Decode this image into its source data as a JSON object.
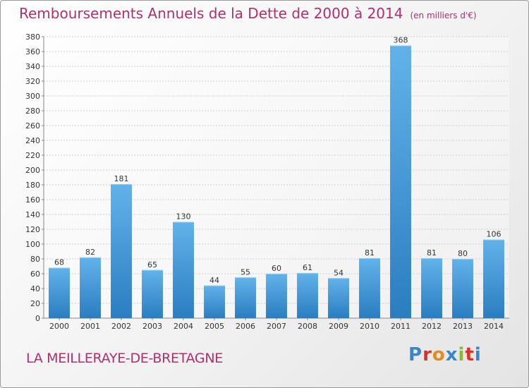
{
  "title": "Remboursements Annuels de la Dette de 2000 à 2014",
  "unit_note": "(en milliers d'€)",
  "footer": {
    "location": "LA MEILLERAYE-DE-BRETAGNE",
    "logo": "Proxiti"
  },
  "colors": {
    "title": "#b0306a",
    "bar_light": "#62b2ea",
    "bar_dark": "#2a7dc0",
    "logo_letters": [
      "#3b86c6",
      "#d9322b",
      "#e48b1e",
      "#3b86c6",
      "#8cb82e",
      "#d9322b",
      "#3b86c6"
    ]
  },
  "chart_data": {
    "type": "bar",
    "title": "Remboursements Annuels de la Dette de 2000 à 2014",
    "xlabel": "",
    "ylabel": "",
    "ylim": [
      0,
      380
    ],
    "ytick_step": 20,
    "grid": true,
    "categories": [
      "2000",
      "2001",
      "2002",
      "2003",
      "2004",
      "2005",
      "2006",
      "2007",
      "2008",
      "2009",
      "2010",
      "2011",
      "2012",
      "2013",
      "2014"
    ],
    "values": [
      68,
      82,
      181,
      65,
      130,
      44,
      55,
      60,
      61,
      54,
      81,
      368,
      81,
      80,
      106
    ]
  }
}
